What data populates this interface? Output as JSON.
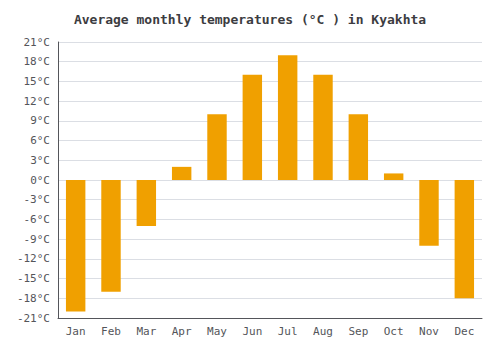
{
  "chart_data": {
    "type": "bar",
    "title": "Average monthly temperatures (°C ) in Kyakhta",
    "categories": [
      "Jan",
      "Feb",
      "Mar",
      "Apr",
      "May",
      "Jun",
      "Jul",
      "Aug",
      "Sep",
      "Oct",
      "Nov",
      "Dec"
    ],
    "values": [
      -20,
      -17,
      -7,
      2,
      10,
      16,
      19,
      16,
      10,
      1,
      -10,
      -18
    ],
    "color": "#F0A000",
    "ylim": [
      -21,
      21
    ],
    "yticks": [
      {
        "value": -21,
        "label": "-21°C"
      },
      {
        "value": -18,
        "label": "-18°C"
      },
      {
        "value": -15,
        "label": "-15°C"
      },
      {
        "value": -12,
        "label": "-12°C"
      },
      {
        "value": -9,
        "label": "-9°C"
      },
      {
        "value": -6,
        "label": "-6°C"
      },
      {
        "value": -3,
        "label": "-3°C"
      },
      {
        "value": 0,
        "label": "0°C"
      },
      {
        "value": 3,
        "label": "3°C"
      },
      {
        "value": 6,
        "label": "6°C"
      },
      {
        "value": 9,
        "label": "9°C"
      },
      {
        "value": 12,
        "label": "12°C"
      },
      {
        "value": 15,
        "label": "15°C"
      },
      {
        "value": 18,
        "label": "18°C"
      },
      {
        "value": 21,
        "label": "21°C"
      }
    ],
    "grid": true
  }
}
